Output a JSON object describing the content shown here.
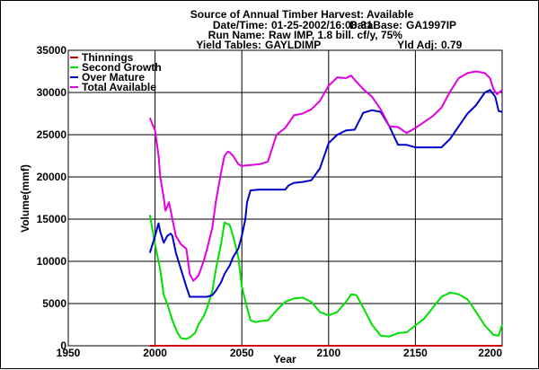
{
  "header": {
    "title": "Source of Annual Timber Harvest: Available",
    "datetime_label": "Date/Time:",
    "datetime_value": "01-25-2002/16:08:31",
    "database_label": "DataBase:",
    "database_value": "GA1997IP",
    "runname_label": "Run Name:",
    "runname_value": "Raw IMP, 1.8 bill. cf/y, 75%",
    "yield_label": "Yield Tables:",
    "yield_value": "GAYLDIMP",
    "yldadj_label": "Yld Adj:",
    "yldadj_value": "0.79"
  },
  "colors": {
    "thinnings": "#cc0000",
    "second_growth": "#00e000",
    "over_mature": "#0000cc",
    "total_available": "#e000e0",
    "grid": "#000000"
  },
  "chart_data": {
    "type": "line",
    "title": "Source of Annual Timber Harvest: Available",
    "xlabel": "Year",
    "ylabel": "Volume(mmf)",
    "xlim": [
      1950,
      2200
    ],
    "ylim": [
      0,
      35000
    ],
    "xticks": [
      1950,
      2000,
      2050,
      2100,
      2150,
      2200
    ],
    "yticks": [
      0,
      5000,
      10000,
      15000,
      20000,
      25000,
      30000,
      35000
    ],
    "xtick_labels": [
      "1950",
      "2000",
      "2050",
      "2100",
      "2150",
      "2200"
    ],
    "ytick_labels": [
      "0",
      "5000",
      "10000",
      "15000",
      "20000",
      "25000",
      "30000",
      "35000"
    ],
    "grid": true,
    "legend_position": "top-left",
    "series": [
      {
        "name": "Thinnings",
        "color": "#cc0000",
        "x": [
          1997,
          2200
        ],
        "y": [
          0,
          0
        ]
      },
      {
        "name": "Second Growth",
        "color": "#00e000",
        "x": [
          1997,
          2000,
          2003,
          2005,
          2007,
          2010,
          2013,
          2015,
          2018,
          2020,
          2023,
          2025,
          2028,
          2030,
          2033,
          2035,
          2038,
          2040,
          2043,
          2045,
          2048,
          2050,
          2053,
          2055,
          2058,
          2060,
          2065,
          2070,
          2075,
          2080,
          2085,
          2090,
          2095,
          2100,
          2105,
          2110,
          2113,
          2116,
          2120,
          2125,
          2130,
          2135,
          2140,
          2145,
          2150,
          2155,
          2160,
          2165,
          2170,
          2175,
          2180,
          2185,
          2190,
          2195,
          2198,
          2200
        ],
        "y": [
          15500,
          12000,
          9000,
          6000,
          5000,
          3000,
          1500,
          900,
          800,
          1000,
          1500,
          2500,
          3500,
          4500,
          6500,
          9000,
          12000,
          14600,
          14300,
          13000,
          10500,
          7000,
          4500,
          3000,
          2800,
          2900,
          3000,
          4200,
          5200,
          5600,
          5700,
          5200,
          4000,
          3600,
          4000,
          5200,
          6100,
          6000,
          4500,
          2500,
          1200,
          1100,
          1500,
          1600,
          2400,
          3200,
          4500,
          5800,
          6300,
          6100,
          5500,
          4000,
          2400,
          1300,
          1200,
          2500
        ]
      },
      {
        "name": "Over Mature",
        "color": "#0000cc",
        "x": [
          1997,
          2000,
          2002,
          2003,
          2005,
          2007,
          2009,
          2010,
          2012,
          2015,
          2018,
          2020,
          2023,
          2025,
          2030,
          2033,
          2035,
          2038,
          2040,
          2043,
          2045,
          2048,
          2050,
          2052,
          2053,
          2055,
          2060,
          2065,
          2070,
          2075,
          2077,
          2080,
          2085,
          2090,
          2095,
          2100,
          2105,
          2110,
          2115,
          2120,
          2125,
          2130,
          2135,
          2140,
          2145,
          2150,
          2155,
          2160,
          2165,
          2170,
          2175,
          2180,
          2185,
          2190,
          2193,
          2196,
          2198,
          2200
        ],
        "y": [
          11000,
          13000,
          14500,
          13500,
          12200,
          13000,
          13300,
          13000,
          11000,
          9000,
          7000,
          5800,
          5800,
          5800,
          5800,
          6000,
          6500,
          7500,
          8500,
          9500,
          10500,
          11500,
          13000,
          15000,
          17000,
          18400,
          18500,
          18500,
          18500,
          18500,
          19000,
          19300,
          19400,
          19600,
          21000,
          24000,
          25000,
          25500,
          25600,
          27600,
          27900,
          27700,
          26000,
          23800,
          23800,
          23500,
          23500,
          23500,
          23500,
          24500,
          26000,
          27500,
          28500,
          30000,
          30300,
          29500,
          27800,
          27700
        ]
      },
      {
        "name": "Total Available",
        "color": "#e000e0",
        "x": [
          1997,
          2000,
          2002,
          2003,
          2005,
          2006,
          2008,
          2010,
          2012,
          2015,
          2018,
          2020,
          2022,
          2025,
          2028,
          2030,
          2033,
          2035,
          2038,
          2040,
          2042,
          2043,
          2045,
          2048,
          2050,
          2055,
          2060,
          2065,
          2070,
          2075,
          2080,
          2085,
          2090,
          2095,
          2100,
          2105,
          2110,
          2113,
          2115,
          2120,
          2125,
          2130,
          2135,
          2140,
          2145,
          2150,
          2155,
          2160,
          2165,
          2170,
          2175,
          2180,
          2185,
          2190,
          2193,
          2195,
          2197,
          2200
        ],
        "y": [
          27000,
          25500,
          22500,
          20000,
          17500,
          16000,
          17000,
          15000,
          13000,
          12000,
          11500,
          8500,
          7700,
          8300,
          10000,
          11500,
          14000,
          17000,
          20500,
          22500,
          23000,
          22900,
          22500,
          21500,
          21300,
          21400,
          21500,
          21800,
          25000,
          25800,
          27300,
          27500,
          28000,
          29000,
          30800,
          31800,
          31700,
          32000,
          31500,
          30400,
          29500,
          28000,
          26000,
          25900,
          25200,
          25800,
          26500,
          27200,
          28200,
          30100,
          31700,
          32300,
          32500,
          32300,
          31700,
          30400,
          29800,
          30300
        ]
      }
    ]
  }
}
